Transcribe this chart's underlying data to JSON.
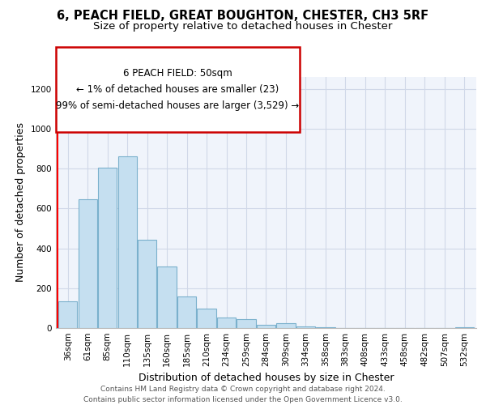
{
  "title": "6, PEACH FIELD, GREAT BOUGHTON, CHESTER, CH3 5RF",
  "subtitle": "Size of property relative to detached houses in Chester",
  "xlabel": "Distribution of detached houses by size in Chester",
  "ylabel": "Number of detached properties",
  "bar_color": "#c5dff0",
  "bar_edge_color": "#7ab0cc",
  "categories": [
    "36sqm",
    "61sqm",
    "85sqm",
    "110sqm",
    "135sqm",
    "160sqm",
    "185sqm",
    "210sqm",
    "234sqm",
    "259sqm",
    "284sqm",
    "309sqm",
    "334sqm",
    "358sqm",
    "383sqm",
    "408sqm",
    "433sqm",
    "458sqm",
    "482sqm",
    "507sqm",
    "532sqm"
  ],
  "values": [
    135,
    645,
    805,
    860,
    445,
    310,
    158,
    97,
    53,
    43,
    15,
    23,
    7,
    5,
    0,
    0,
    0,
    0,
    0,
    0,
    5
  ],
  "ylim": [
    0,
    1260
  ],
  "yticks": [
    0,
    200,
    400,
    600,
    800,
    1000,
    1200
  ],
  "annotation_title": "6 PEACH FIELD: 50sqm",
  "annotation_line1": "← 1% of detached houses are smaller (23)",
  "annotation_line2": "99% of semi-detached houses are larger (3,529) →",
  "box_color": "#cc0000",
  "footer_line1": "Contains HM Land Registry data © Crown copyright and database right 2024.",
  "footer_line2": "Contains public sector information licensed under the Open Government Licence v3.0.",
  "title_fontsize": 10.5,
  "subtitle_fontsize": 9.5,
  "axis_label_fontsize": 9,
  "tick_fontsize": 7.5,
  "annotation_fontsize": 8.5,
  "footer_fontsize": 6.5,
  "grid_color": "#d0d8e8",
  "bg_color": "#f0f4fb"
}
